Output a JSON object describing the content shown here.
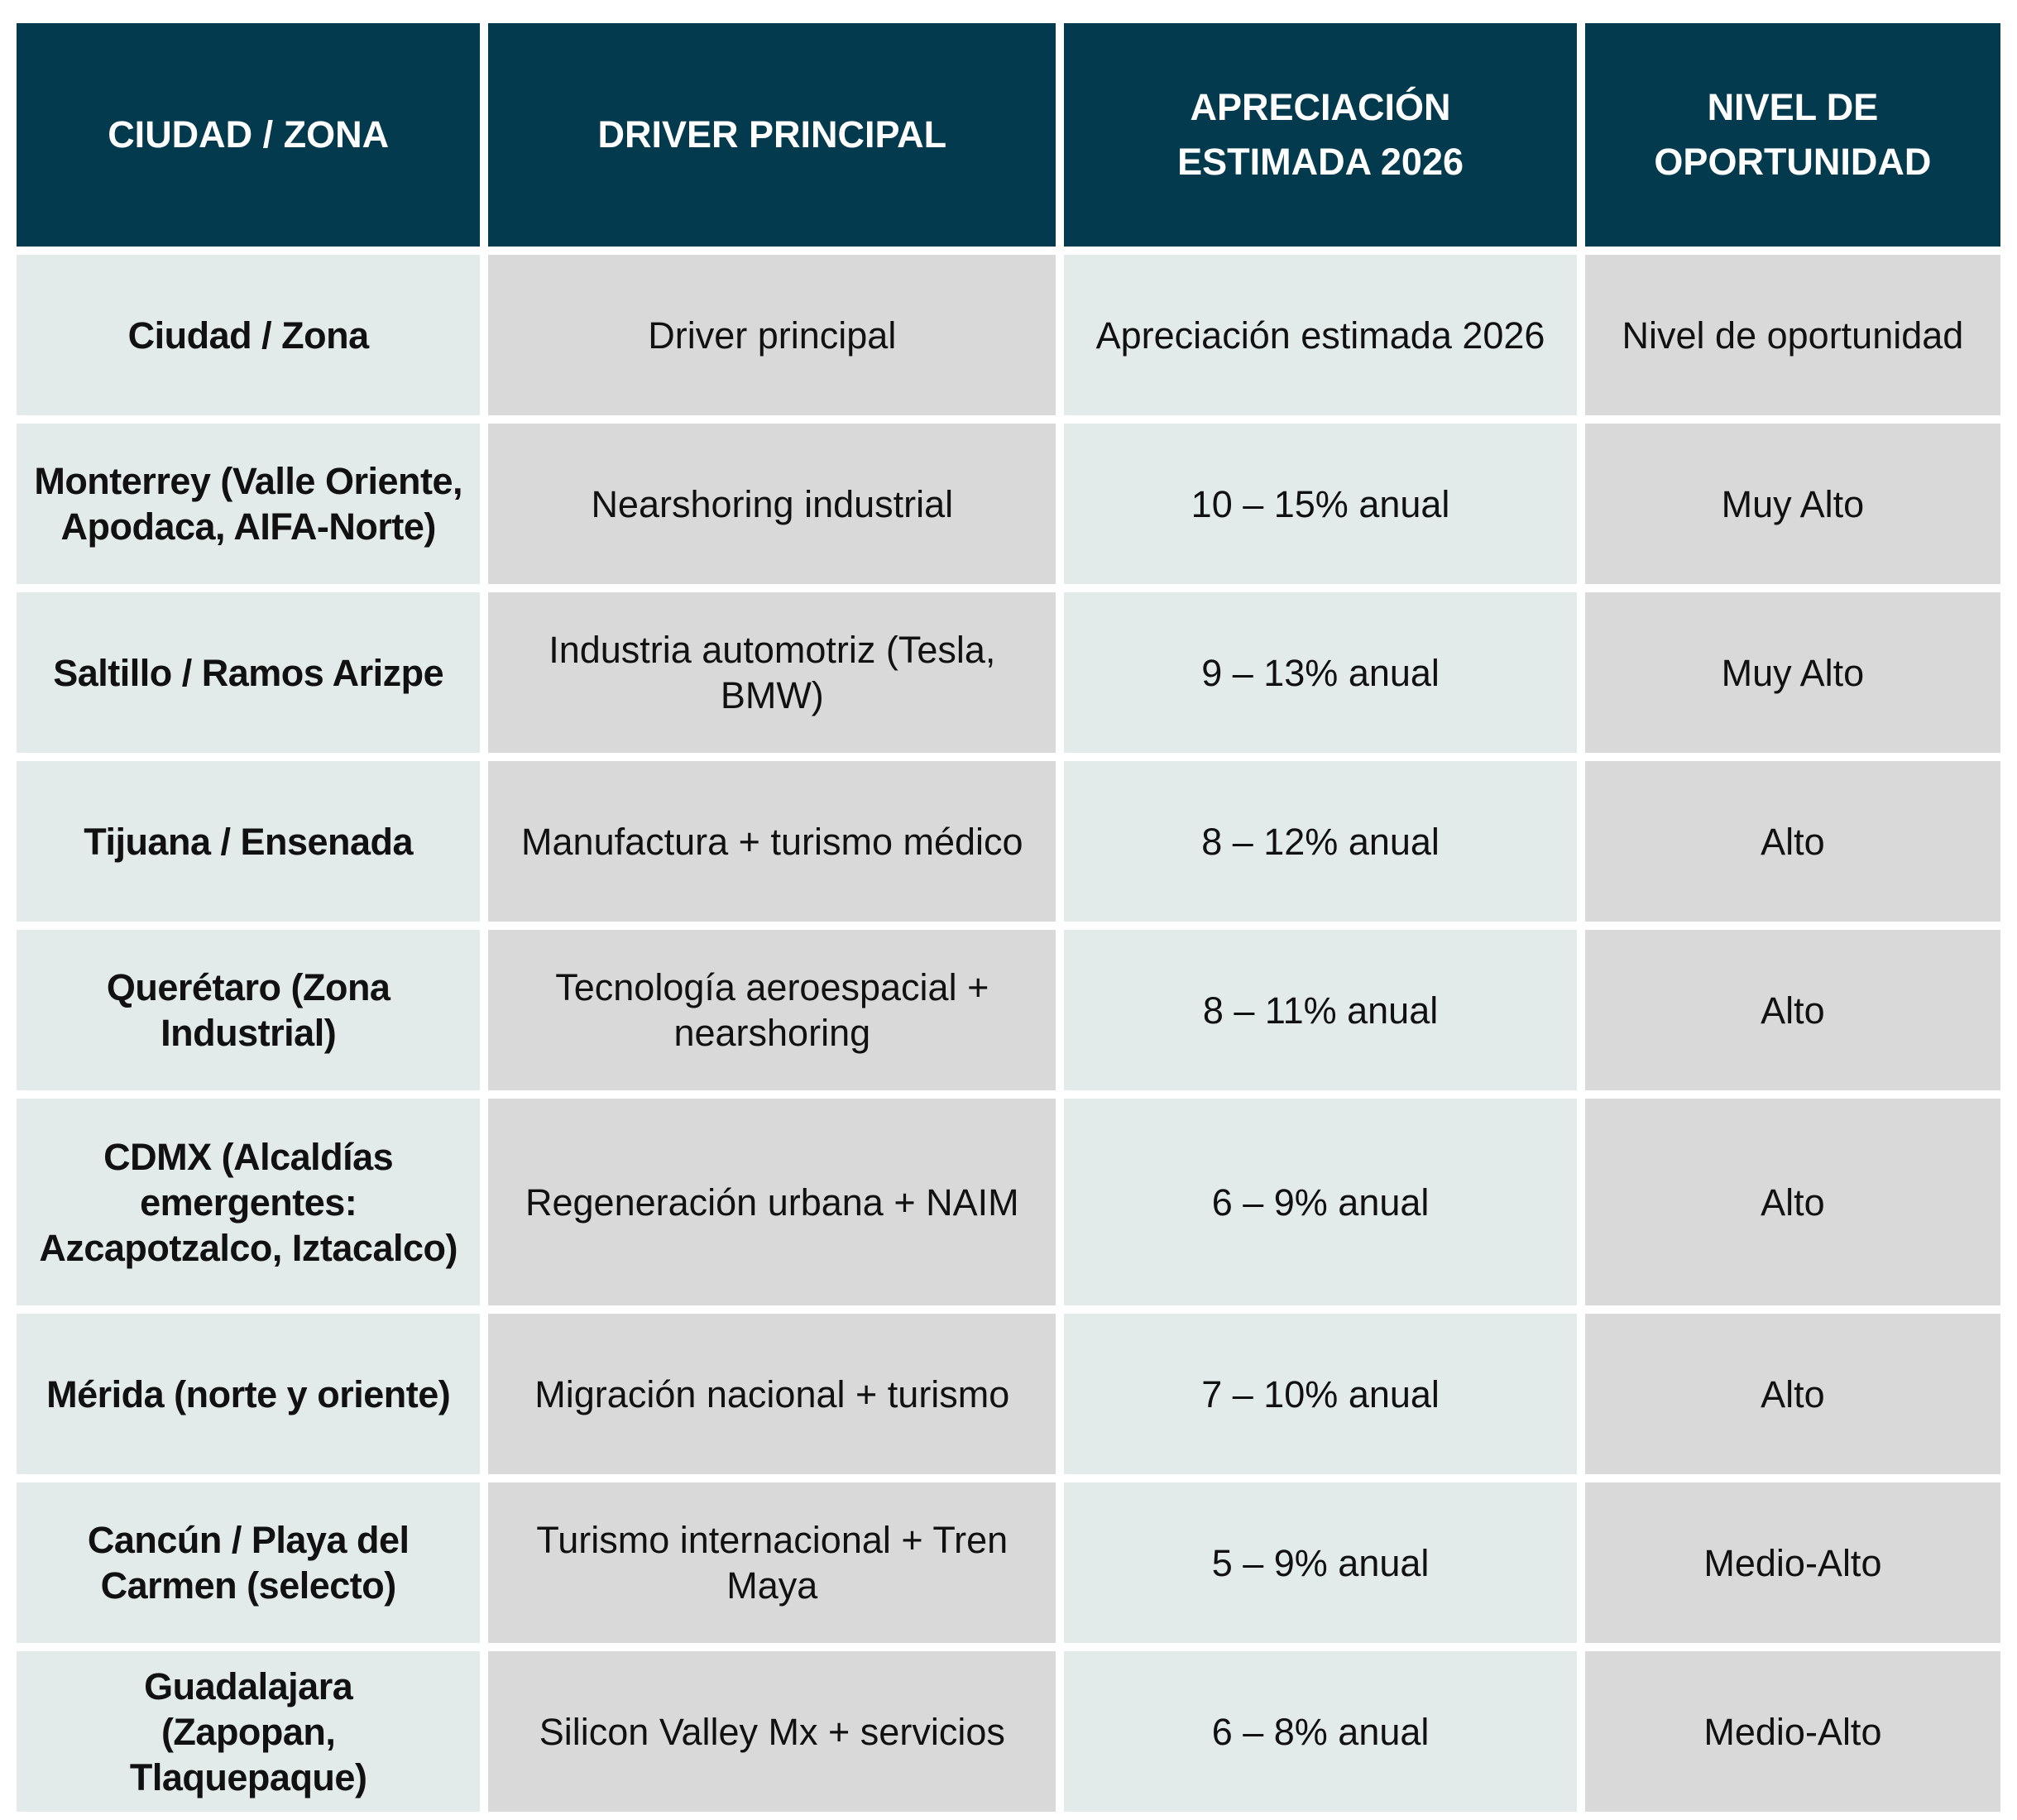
{
  "headers": [
    "CIUDAD / ZONA",
    "DRIVER PRINCIPAL",
    "APRECIACIÓN ESTIMADA 2026",
    "NIVEL DE OPORTUNIDAD"
  ],
  "rows": [
    {
      "city": "Ciudad / Zona",
      "driver": "Driver principal",
      "appreciation": "Apreciación estimada 2026",
      "level": "Nivel de oportunidad"
    },
    {
      "city": "Monterrey (Valle Oriente, Apodaca, AIFA-Norte)",
      "driver": "Nearshoring industrial",
      "appreciation": "10 – 15% anual",
      "level": "Muy Alto"
    },
    {
      "city": "Saltillo / Ramos Arizpe",
      "driver": "Industria automotriz (Tesla, BMW)",
      "appreciation": "9 – 13% anual",
      "level": "Muy Alto"
    },
    {
      "city": "Tijuana / Ensenada",
      "driver": "Manufactura + turismo médico",
      "appreciation": "8 – 12% anual",
      "level": "Alto"
    },
    {
      "city": "Querétaro (Zona Industrial)",
      "driver": "Tecnología aeroespacial + nearshoring",
      "appreciation": "8 – 11% anual",
      "level": "Alto"
    },
    {
      "city": "CDMX (Alcaldías emergentes: Azcapotzalco, Iztacalco)",
      "driver": "Regeneración urbana + NAIM",
      "appreciation": "6 – 9% anual",
      "level": "Alto"
    },
    {
      "city": "Mérida (norte y oriente)",
      "driver": "Migración nacional + turismo",
      "appreciation": "7 – 10% anual",
      "level": "Alto"
    },
    {
      "city": "Cancún / Playa del Carmen (selecto)",
      "driver": "Turismo internacional + Tren Maya",
      "appreciation": "5 – 9% anual",
      "level": "Medio-Alto"
    },
    {
      "city": "Guadalajara (Zapopan, Tlaquepaque)",
      "driver": "Silicon Valley Mx + servicios",
      "appreciation": "6 – 8% anual",
      "level": "Medio-Alto"
    }
  ],
  "colors": {
    "header_bg": "#033a4d",
    "header_text": "#ffffff",
    "cell_light": "#e2eaea",
    "cell_gray": "#d9d9d9"
  }
}
